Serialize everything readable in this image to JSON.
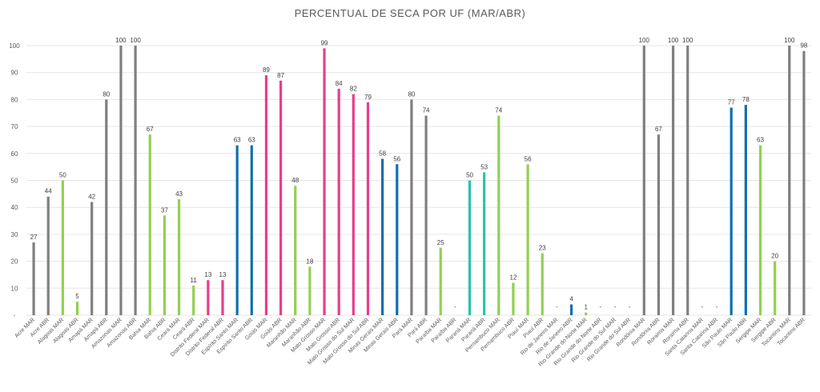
{
  "chart_data": {
    "type": "bar",
    "title": "PERCENTUAL DE SECA POR UF (MAR/ABR)",
    "ylim": [
      0,
      100
    ],
    "yticks": [
      "-",
      "10",
      "20",
      "30",
      "40",
      "50",
      "60",
      "70",
      "80",
      "90",
      "100"
    ],
    "grid": true,
    "colors": {
      "gray": "#7f7f7f",
      "green": "#92d050",
      "magenta": "#e83e8c",
      "blue": "#0e6fb0",
      "teal": "#29c4a9"
    },
    "categories": [
      "Acre MAR",
      "Acre ABR",
      "Alagoas MAR",
      "Alagoas ABR",
      "Amapá MAR",
      "Amapá ABR",
      "Amazonas MAR",
      "Amazonas ABR",
      "Bahia MAR",
      "Bahia ABR",
      "Ceará MAR",
      "Ceará ABR",
      "Distrito Federal MAR",
      "Distrito Federal ABR",
      "Espírito Santo MAR",
      "Espírito Santo ABR",
      "Goiás MAR",
      "Goiás ABR",
      "Maranhão MAR",
      "Maranhão ABR",
      "Mato Grosso MAR",
      "Mato Grosso ABR",
      "Mato Grosso do Sul MAR",
      "Mato Grosso do Sul ABR",
      "Minas Gerais MAR",
      "Minas Gerais ABR",
      "Pará MAR",
      "Pará ABR",
      "Paraíba MAR",
      "Paraíba ABR",
      "Paraná MAR",
      "Paraná ABR",
      "Pernambuco MAR",
      "Pernambuco ABR",
      "Piauí MAR",
      "Piauí ABR",
      "Rio de Janeiro MAR",
      "Rio de Janeiro ABR",
      "Rio Grande do Norte MAR",
      "Rio Grande do Norte ABR",
      "Rio Grande do Sul MAR",
      "Rio Grande do Sul ABR",
      "Rondônia MAR",
      "Rondônia ABR",
      "Roraima MAR",
      "Roraima ABR",
      "Santa Catarina MAR",
      "Santa Catarina ABR",
      "São Paulo MAR",
      "São Paulo ABR",
      "Sergipe MAR",
      "Sergipe ABR",
      "Tocantins MAR",
      "Tocantins ABR"
    ],
    "values": [
      27,
      44,
      50,
      5,
      42,
      80,
      100,
      100,
      67,
      37,
      43,
      11,
      13,
      13,
      63,
      63,
      89,
      87,
      48,
      18,
      99,
      84,
      82,
      79,
      58,
      56,
      80,
      74,
      25,
      0,
      50,
      53,
      74,
      12,
      56,
      23,
      0,
      4,
      1,
      0,
      0,
      0,
      100,
      67,
      100,
      100,
      0,
      0,
      77,
      78,
      63,
      20,
      100,
      98
    ],
    "data_labels": [
      "27",
      "44",
      "50",
      "5",
      "42",
      "80",
      "100",
      "100",
      "67",
      "37",
      "43",
      "11",
      "13",
      "13",
      "63",
      "63",
      "89",
      "87",
      "48",
      "18",
      "99",
      "84",
      "82",
      "79",
      "58",
      "56",
      "80",
      "74",
      "25",
      "-",
      "50",
      "53",
      "74",
      "12",
      "56",
      "23",
      "-",
      "4",
      "1",
      "-",
      "-",
      "-",
      "100",
      "67",
      "100",
      "100",
      "-",
      "-",
      "77",
      "78",
      "63",
      "20",
      "100",
      "98"
    ],
    "bar_colors": [
      "gray",
      "gray",
      "green",
      "green",
      "gray",
      "gray",
      "gray",
      "gray",
      "green",
      "green",
      "green",
      "green",
      "magenta",
      "magenta",
      "blue",
      "blue",
      "magenta",
      "magenta",
      "green",
      "green",
      "magenta",
      "magenta",
      "magenta",
      "magenta",
      "blue",
      "blue",
      "gray",
      "gray",
      "green",
      "green",
      "teal",
      "teal",
      "green",
      "green",
      "green",
      "green",
      "gray",
      "blue",
      "green",
      "green",
      "gray",
      "gray",
      "gray",
      "gray",
      "gray",
      "gray",
      "gray",
      "gray",
      "blue",
      "blue",
      "green",
      "green",
      "gray",
      "gray"
    ]
  }
}
